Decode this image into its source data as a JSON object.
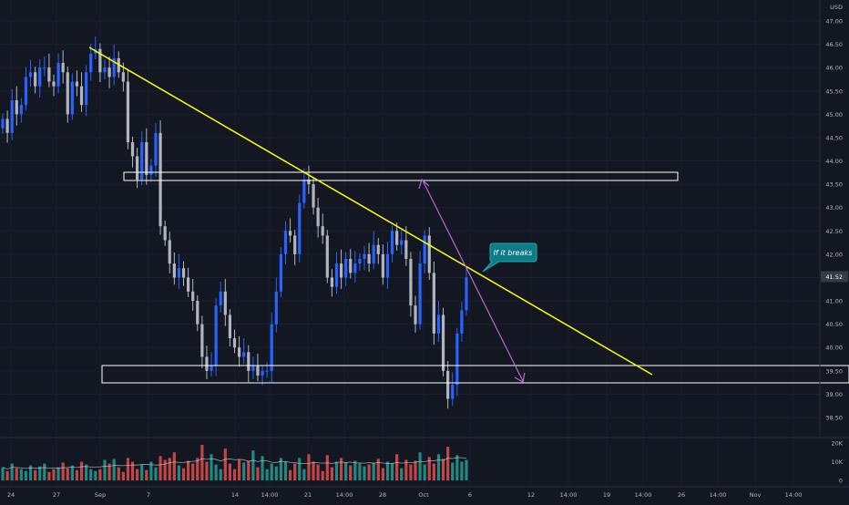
{
  "chart_data": {
    "type": "candlestick",
    "currency": "USD",
    "price_axis": {
      "ticks": [
        "47.00",
        "46.50",
        "46.00",
        "45.50",
        "45.00",
        "44.50",
        "44.00",
        "43.50",
        "43.00",
        "42.50",
        "42.00",
        "41.50",
        "41.00",
        "40.50",
        "40.00",
        "39.50",
        "39.00",
        "38.50"
      ],
      "range": [
        38.25,
        47.3
      ],
      "last_price": "41.52"
    },
    "volume_axis": {
      "ticks": [
        "20K",
        "10K",
        "0"
      ],
      "range": [
        0,
        25000
      ]
    },
    "time_axis": {
      "ticks": [
        "24",
        "27",
        "Sep",
        "7",
        "14",
        "14:00",
        "21",
        "14:00",
        "28",
        "Oct",
        "6",
        "12",
        "14:00",
        "19",
        "14:00",
        "26",
        "14:00",
        "Nov",
        "14:00"
      ]
    },
    "ohlc_close": [
      44.9,
      44.6,
      45.3,
      45.0,
      45.2,
      45.8,
      45.9,
      45.6,
      46.0,
      46.0,
      45.7,
      45.6,
      46.1,
      45.9,
      45.0,
      45.7,
      45.6,
      45.2,
      45.9,
      46.3,
      46.4,
      45.9,
      46.0,
      45.8,
      46.2,
      45.9,
      45.7,
      44.4,
      44.1,
      43.6,
      44.4,
      43.7,
      43.9,
      44.6,
      42.6,
      42.3,
      41.8,
      41.5,
      41.7,
      41.5,
      41.2,
      41.0,
      40.5,
      39.8,
      39.5,
      39.6,
      40.9,
      41.2,
      40.7,
      40.2,
      40.0,
      39.8,
      39.9,
      39.5,
      39.6,
      39.4,
      39.5,
      39.5,
      40.5,
      41.2,
      42.0,
      42.5,
      42.4,
      42.0,
      43.1,
      43.6,
      43.5,
      43.0,
      42.6,
      42.4,
      41.5,
      41.3,
      41.8,
      41.5,
      41.9,
      41.6,
      41.8,
      41.9,
      42.0,
      41.8,
      42.2,
      42.0,
      41.5,
      42.0,
      42.5,
      42.2,
      42.3,
      41.9,
      40.9,
      40.5,
      41.8,
      42.4,
      41.6,
      40.3,
      40.7,
      39.5,
      38.9,
      39.2,
      40.3,
      40.8,
      41.5
    ],
    "volume": [
      7000,
      5000,
      9000,
      6500,
      6000,
      5000,
      8000,
      5500,
      7500,
      9000,
      4500,
      6000,
      7000,
      9500,
      6500,
      8000,
      5500,
      10000,
      8500,
      6000,
      5000,
      6000,
      11000,
      9000,
      11500,
      7000,
      4500,
      12000,
      10000,
      6000,
      8500,
      5500,
      10000,
      7000,
      13000,
      11000,
      12000,
      15000,
      8000,
      6500,
      10500,
      9000,
      12000,
      19000,
      10000,
      14000,
      8500,
      6000,
      17000,
      9000,
      6000,
      11000,
      9500,
      10500,
      16000,
      7000,
      13000,
      6000,
      9000,
      7500,
      12000,
      10000,
      5500,
      9000,
      12000,
      6000,
      14000,
      10000,
      8500,
      5000,
      13500,
      7000,
      10000,
      12000,
      9500,
      8000,
      10500,
      9000,
      7500,
      8500,
      9500,
      11500,
      6500,
      10000,
      9000,
      14000,
      6500,
      11000,
      8500,
      10500,
      15000,
      8500,
      12500,
      9000,
      14000,
      11500,
      18000,
      9500,
      13500,
      10000,
      11000
    ],
    "annotations": {
      "trend_label": "If it breaks"
    },
    "colors": {
      "background": "#131722",
      "up": "#2962FF",
      "down": "#B2B5BE",
      "volume_up": "#26A69A",
      "volume_down": "#EF5350",
      "trendline": "#FFFF00",
      "arrow": "#BA68C8",
      "callout": "#0E7C86",
      "zone_border": "#FFFFFF",
      "axis_text": "#B2B5BE",
      "price_tag": "#363A45"
    }
  }
}
